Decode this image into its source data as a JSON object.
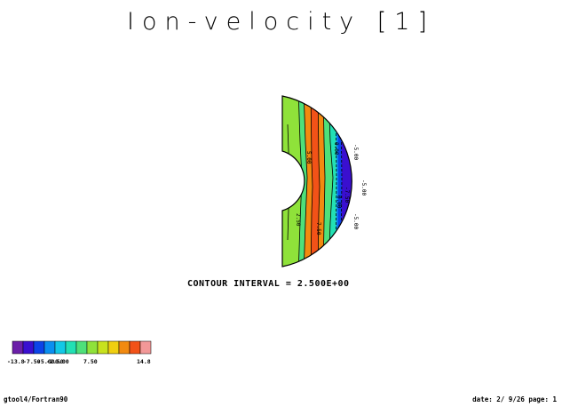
{
  "title": "Ion-velocity [1]",
  "contour_interval": "CONTOUR INTERVAL = 2.500E+00",
  "footer": {
    "left": "gtool4/Fortran90",
    "right": "date: 2/ 9/26 page: 1"
  },
  "colors": {
    "levels": [
      "#6b1fa8",
      "#3a0fd0",
      "#0c44e8",
      "#0a8ff0",
      "#12c8e6",
      "#22e0b4",
      "#4ee07a",
      "#8fe23a",
      "#c8e21e",
      "#f0cf10",
      "#f28a10",
      "#f25218",
      "#f29898"
    ]
  },
  "chart_data": {
    "type": "contour",
    "title": "Ion-velocity [1]",
    "contour_interval": 2.5,
    "value_range": [
      -13.8,
      14.8
    ],
    "colorbar_ticks": [
      "-13.8",
      "-7.50",
      "-5.00",
      "-2.50",
      "0.00",
      "7.50",
      "14.8"
    ],
    "contour_labels": [
      "-5.00",
      "-5.00",
      "-5.00",
      "-7.50",
      "0.00",
      "0.00",
      "5.00",
      "2.50",
      "7.50"
    ],
    "regions": [
      {
        "band": "outer-left",
        "value": 2.5
      },
      {
        "band": "left",
        "value": 5.0
      },
      {
        "band": "left-peak",
        "value": 10.0
      },
      {
        "band": "center",
        "value": 0.0
      },
      {
        "band": "right-inner",
        "value": -5.0
      },
      {
        "band": "right-peak",
        "value": -12.5
      },
      {
        "band": "right-edge",
        "value": -2.5
      }
    ]
  }
}
